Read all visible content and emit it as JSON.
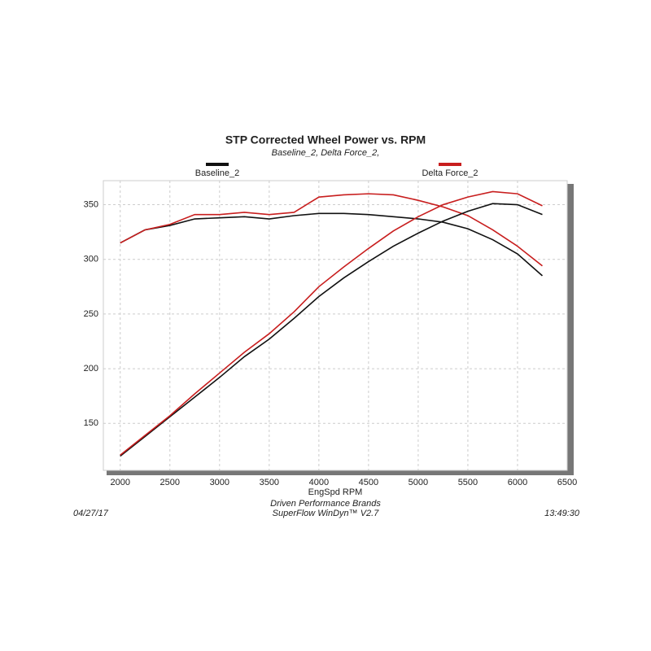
{
  "chart_data": {
    "type": "line",
    "title": "STP Corrected Wheel Power vs. RPM",
    "subtitle": "Baseline_2, Delta Force_2,",
    "x_label": "EngSpd RPM",
    "footer": {
      "date": "04/27/17",
      "company": "Driven Performance Brands",
      "software": "SuperFlow WinDyn™ V2.7",
      "time": "13:49:30"
    },
    "x": [
      2000,
      2250,
      2500,
      2750,
      3000,
      3250,
      3500,
      3750,
      4000,
      4250,
      4500,
      4750,
      5000,
      5250,
      5500,
      5750,
      6000,
      6250
    ],
    "series": [
      {
        "name": "Baseline_2",
        "color": "#111111",
        "values": [
          315,
          327,
          331,
          337,
          338,
          339,
          337,
          340,
          342,
          342,
          341,
          339,
          337,
          334,
          328,
          318,
          305,
          285
        ]
      },
      {
        "name": "Delta Force_2",
        "color": "#c81e1e",
        "values": [
          315,
          327,
          332,
          341,
          341,
          343,
          341,
          343,
          357,
          359,
          360,
          359,
          354,
          348,
          340,
          327,
          312,
          294
        ]
      },
      {
        "color": "#111111",
        "values": [
          120,
          138,
          156,
          174,
          192,
          211,
          227,
          246,
          266,
          283,
          298,
          312,
          324,
          335,
          344,
          351,
          350,
          341
        ]
      },
      {
        "color": "#c81e1e",
        "values": [
          121,
          139,
          157,
          177,
          196,
          215,
          232,
          252,
          275,
          293,
          310,
          326,
          339,
          350,
          357,
          362,
          360,
          349
        ]
      }
    ],
    "xlim": [
      1830,
      6500
    ],
    "xticks": [
      2000,
      2500,
      3000,
      3500,
      4000,
      4500,
      5000,
      5500,
      6000,
      6500
    ],
    "ylim": [
      107,
      372
    ],
    "yticks": [
      150,
      200,
      250,
      300,
      350
    ],
    "grid": true
  }
}
